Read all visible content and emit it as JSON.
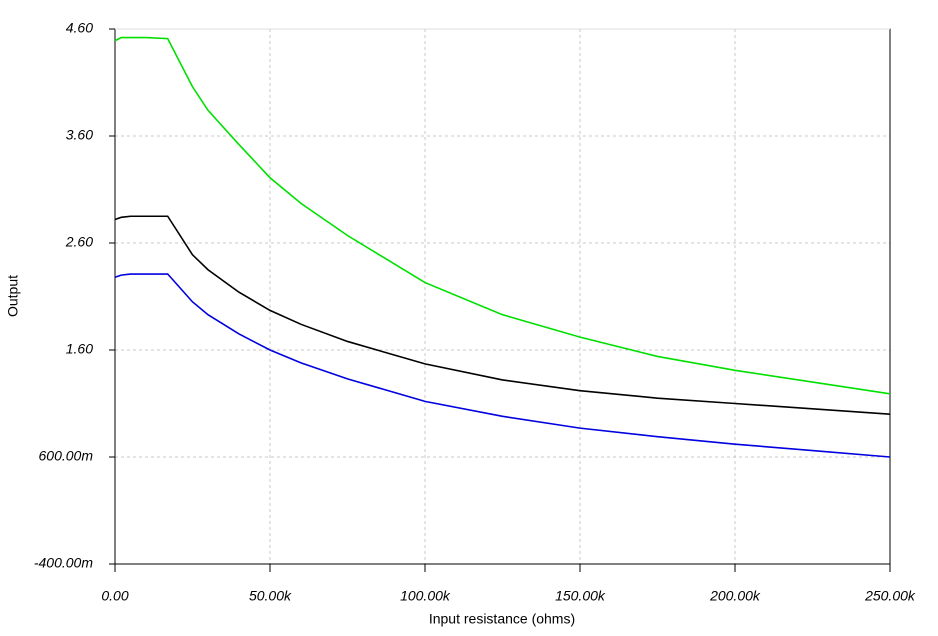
{
  "chart_data": {
    "type": "line",
    "x_label": "Input resistance (ohms)",
    "y_label": "Output",
    "xlim": [
      0,
      250000
    ],
    "ylim": [
      -0.4,
      4.6
    ],
    "xticks": [
      {
        "value": 0,
        "label": "0.00"
      },
      {
        "value": 50000,
        "label": "50.00k"
      },
      {
        "value": 100000,
        "label": "100.00k"
      },
      {
        "value": 150000,
        "label": "150.00k"
      },
      {
        "value": 200000,
        "label": "200.00k"
      },
      {
        "value": 250000,
        "label": "250.00k"
      }
    ],
    "yticks": [
      {
        "value": -0.4,
        "label": "-400.00m"
      },
      {
        "value": 0.6,
        "label": "600.00m"
      },
      {
        "value": 1.6,
        "label": "1.60"
      },
      {
        "value": 2.6,
        "label": "2.60"
      },
      {
        "value": 3.6,
        "label": "3.60"
      },
      {
        "value": 4.6,
        "label": "4.60"
      }
    ],
    "grid": true,
    "x": [
      0,
      2000,
      5000,
      10000,
      17000,
      25000,
      30000,
      40000,
      50000,
      60000,
      75000,
      100000,
      125000,
      150000,
      175000,
      200000,
      225000,
      250000
    ],
    "series": [
      {
        "color": "#00e000",
        "values": [
          4.49,
          4.52,
          4.52,
          4.52,
          4.51,
          4.06,
          3.84,
          3.52,
          3.21,
          2.97,
          2.67,
          2.23,
          1.93,
          1.72,
          1.54,
          1.41,
          1.3,
          1.19
        ]
      },
      {
        "color": "#000000",
        "values": [
          2.82,
          2.84,
          2.85,
          2.85,
          2.85,
          2.49,
          2.35,
          2.14,
          1.97,
          1.84,
          1.68,
          1.47,
          1.32,
          1.22,
          1.15,
          1.1,
          1.05,
          1.0
        ]
      },
      {
        "color": "#0000e0",
        "values": [
          2.28,
          2.3,
          2.31,
          2.31,
          2.31,
          2.05,
          1.93,
          1.75,
          1.6,
          1.48,
          1.33,
          1.12,
          0.98,
          0.87,
          0.79,
          0.72,
          0.66,
          0.6
        ]
      }
    ]
  }
}
